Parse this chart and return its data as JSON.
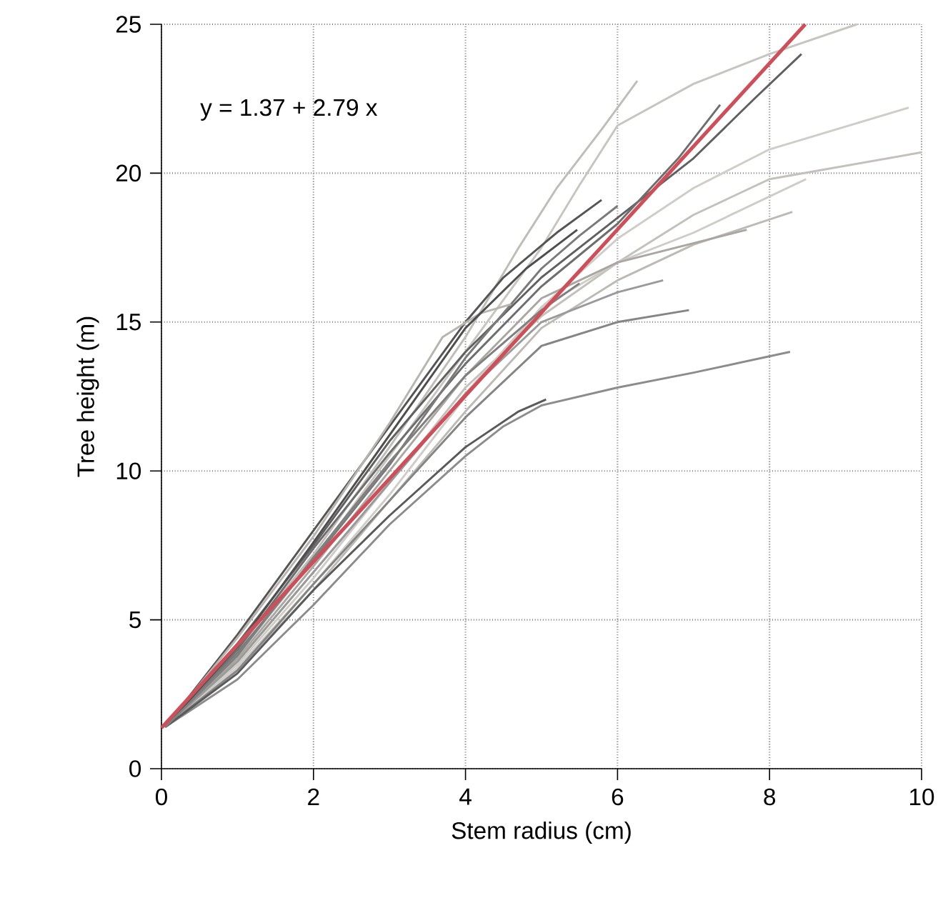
{
  "chart_data": {
    "type": "line",
    "xlabel": "Stem radius (cm)",
    "ylabel": "Tree height (m)",
    "annotations": [
      "y =  1.37 +  2.79 x"
    ],
    "xlim": [
      0,
      10
    ],
    "ylim": [
      0,
      25
    ],
    "xticks": [
      0,
      2,
      4,
      6,
      8,
      10
    ],
    "yticks": [
      0,
      5,
      10,
      15,
      20,
      25
    ],
    "grid": true,
    "series": [
      {
        "color": "#c8c4c0",
        "x": [
          0.05,
          1,
          2,
          3,
          4,
          5,
          5.5,
          6,
          7,
          8,
          9.15
        ],
        "values": [
          1.4,
          3.8,
          7.0,
          10.5,
          14.0,
          17.5,
          19.6,
          21.6,
          23.0,
          24.0,
          25.0
        ]
      },
      {
        "color": "#d0ccc8",
        "x": [
          0.05,
          1,
          2,
          3,
          4,
          5,
          6,
          7,
          8,
          9.83
        ],
        "values": [
          1.4,
          3.4,
          6.2,
          9.2,
          12.5,
          15.5,
          17.8,
          19.5,
          20.8,
          22.2
        ]
      },
      {
        "color": "#c4c0bc",
        "x": [
          0.05,
          1,
          2,
          3,
          4,
          5,
          6,
          7,
          8,
          10
        ],
        "values": [
          1.4,
          3.6,
          6.6,
          9.6,
          12.8,
          15.2,
          17.0,
          18.6,
          19.8,
          20.7
        ]
      },
      {
        "color": "#c0bcb8",
        "x": [
          0.05,
          1,
          2,
          3,
          4,
          4.7,
          5.2,
          5.8,
          6.26
        ],
        "values": [
          1.4,
          4.0,
          7.2,
          10.8,
          14.5,
          17.5,
          19.5,
          21.5,
          23.1
        ]
      },
      {
        "color": "#cfcbc7",
        "x": [
          0.05,
          1,
          2,
          3,
          4,
          5,
          6,
          7,
          8.48
        ],
        "values": [
          1.4,
          3.5,
          6.4,
          9.6,
          12.6,
          15.5,
          17.0,
          18.0,
          19.8
        ]
      },
      {
        "color": "#bdb9b5",
        "x": [
          0.05,
          1,
          2,
          3,
          4,
          5,
          6,
          7,
          8.3
        ],
        "values": [
          1.4,
          3.3,
          6.0,
          9.0,
          12.0,
          14.8,
          16.4,
          17.6,
          18.7
        ]
      },
      {
        "color": "#aaa6a2",
        "x": [
          0.05,
          1,
          2,
          3,
          4,
          5,
          6,
          7.7
        ],
        "values": [
          1.4,
          3.7,
          6.8,
          10.0,
          13.2,
          15.8,
          17.0,
          18.1
        ]
      },
      {
        "color": "#8c8c8c",
        "x": [
          0.05,
          1,
          2,
          3,
          4,
          4.5,
          5,
          6,
          7,
          8.27
        ],
        "values": [
          1.4,
          3.0,
          5.5,
          8.2,
          10.5,
          11.5,
          12.2,
          12.8,
          13.3,
          14.0
        ]
      },
      {
        "color": "#858585",
        "x": [
          0.05,
          1,
          2,
          3,
          4,
          5,
          6,
          6.94
        ],
        "values": [
          1.4,
          3.3,
          6.2,
          9.0,
          11.8,
          14.2,
          15.0,
          15.4
        ]
      },
      {
        "color": "#9a9a9a",
        "x": [
          0.05,
          1,
          2,
          3,
          4,
          5,
          6,
          6.6
        ],
        "values": [
          1.4,
          3.6,
          6.6,
          9.6,
          12.6,
          15.0,
          16.0,
          16.4
        ]
      },
      {
        "color": "#606060",
        "x": [
          0.05,
          1,
          2,
          3,
          4,
          5,
          6,
          7,
          7.8,
          8.42
        ],
        "values": [
          1.4,
          4.2,
          7.5,
          11.0,
          14.0,
          16.5,
          18.5,
          20.5,
          22.5,
          24.0
        ]
      },
      {
        "color": "#6e6e6e",
        "x": [
          0.05,
          1,
          2,
          3,
          4,
          5,
          6,
          6.8,
          7.35
        ],
        "values": [
          1.4,
          4.0,
          7.4,
          10.6,
          13.6,
          16.2,
          18.3,
          20.5,
          22.3
        ]
      },
      {
        "color": "#555555",
        "x": [
          0.05,
          1,
          2,
          3,
          4,
          4.5,
          5.2,
          5.79
        ],
        "values": [
          1.4,
          4.5,
          8.0,
          11.5,
          15.0,
          16.5,
          18.0,
          19.1
        ]
      },
      {
        "color": "#7a7a7a",
        "x": [
          0.05,
          1,
          2,
          3,
          4,
          5,
          5.5,
          6.0
        ],
        "values": [
          1.4,
          3.9,
          7.0,
          10.2,
          13.8,
          16.8,
          17.9,
          18.9
        ]
      },
      {
        "color": "#5a5a5a",
        "x": [
          0.05,
          1,
          2,
          3,
          4,
          4.7,
          5.06
        ],
        "values": [
          1.4,
          3.2,
          6.0,
          8.5,
          10.8,
          12.0,
          12.4
        ]
      },
      {
        "color": "#b8b4b0",
        "x": [
          0.05,
          1,
          2,
          3,
          3.7,
          4.2,
          4.6
        ],
        "values": [
          1.4,
          4.4,
          7.8,
          11.6,
          14.5,
          15.3,
          15.6
        ]
      },
      {
        "color": "#4e4e4e",
        "x": [
          0.05,
          1,
          2,
          3,
          4,
          4.8,
          5.47
        ],
        "values": [
          1.4,
          4.1,
          7.6,
          11.2,
          14.8,
          16.8,
          18.1
        ]
      },
      {
        "color": "#7f7f7f",
        "x": [
          0.05,
          1,
          2,
          3,
          4,
          5,
          5.5
        ],
        "values": [
          1.4,
          3.8,
          7.1,
          10.3,
          13.2,
          15.4,
          16.3
        ]
      },
      {
        "type": "line",
        "color": "#cd4f5a",
        "x": [
          0,
          8.47
        ],
        "values": [
          1.37,
          25
        ]
      }
    ]
  }
}
